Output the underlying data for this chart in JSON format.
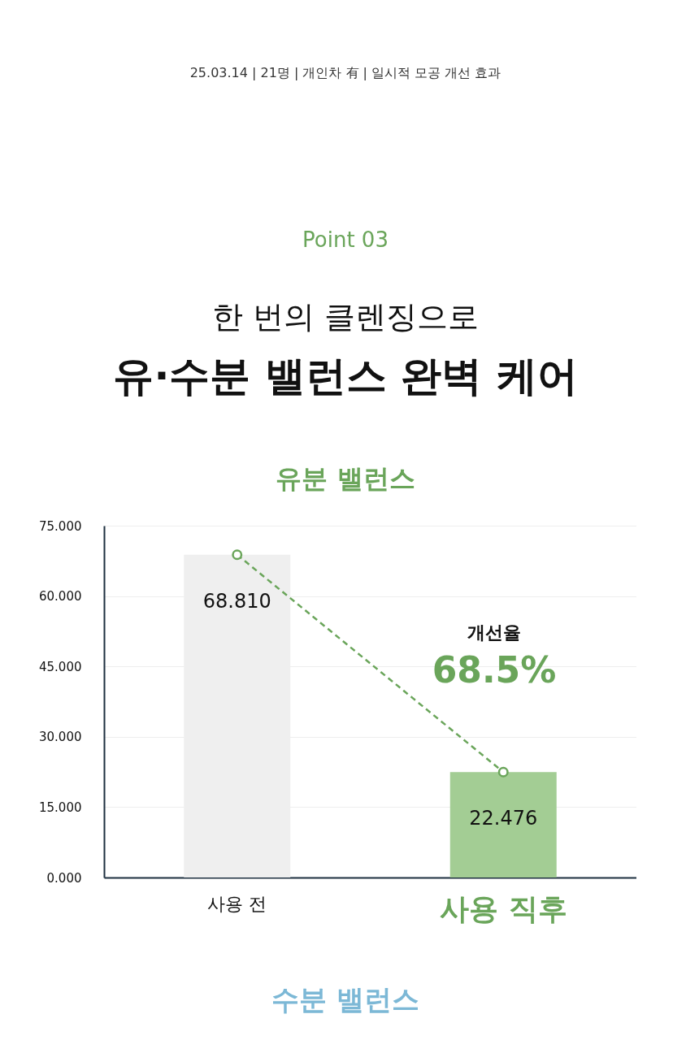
{
  "chart_data": {
    "type": "bar",
    "title": "유분 밸런스",
    "annotations": [
      "25.03.14 | 21명 | 개인차 有 | 일시적 모공 개선 효과",
      "Point 03",
      "한 번의 클렌징으로",
      "유·수분 밸런스 완벽 케어",
      "개선율",
      "68.5%",
      "수분 밸런스"
    ],
    "categories": [
      "사용 전",
      "사용 직후"
    ],
    "series": [
      {
        "colors": [
          "#efefef",
          "#a3cd94"
        ],
        "values": [
          68.81,
          22.476
        ],
        "value_labels": [
          "68.810",
          "22.476"
        ]
      },
      {
        "type": "line",
        "color": "#6aa55a",
        "values": [
          68.81,
          22.476
        ],
        "line_style": "dashed",
        "marker": "circle"
      }
    ],
    "ylim": [
      0,
      75
    ],
    "yticks": [
      {
        "value": 0,
        "label": "0.000"
      },
      {
        "value": 15,
        "label": "15.000"
      },
      {
        "value": 30,
        "label": "30.000"
      },
      {
        "value": 45,
        "label": "45.000"
      },
      {
        "value": 60,
        "label": "60.000"
      },
      {
        "value": 75,
        "label": "75.000"
      }
    ],
    "grid": "y"
  }
}
